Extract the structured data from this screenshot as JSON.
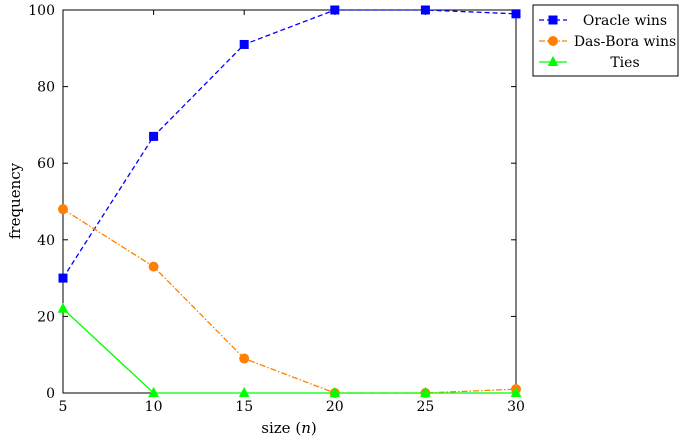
{
  "chart_data": {
    "type": "line",
    "title": "",
    "xlabel": "size (",
    "xlabel_var": "n",
    "xlabel_close": ")",
    "ylabel": "frequency",
    "x": [
      5,
      10,
      15,
      20,
      25,
      30
    ],
    "xlim": [
      5,
      30
    ],
    "ylim": [
      0,
      100
    ],
    "xticks": [
      5,
      10,
      15,
      20,
      25,
      30
    ],
    "yticks": [
      0,
      20,
      40,
      60,
      80,
      100
    ],
    "grid": false,
    "legend_position": "outside-top-right",
    "series": [
      {
        "name": "Oracle wins",
        "values": [
          30,
          67,
          91,
          100,
          100,
          99
        ],
        "color": "#0000ff",
        "marker": "square",
        "dash": "dashed"
      },
      {
        "name": "Das-Bora wins",
        "values": [
          48,
          33,
          9,
          0,
          0,
          1
        ],
        "color": "#ff8000",
        "marker": "circle",
        "dash": "dashdot"
      },
      {
        "name": "Ties",
        "values": [
          22,
          0,
          0,
          0,
          0,
          0
        ],
        "color": "#00ff00",
        "marker": "triangle",
        "dash": "solid"
      }
    ]
  }
}
